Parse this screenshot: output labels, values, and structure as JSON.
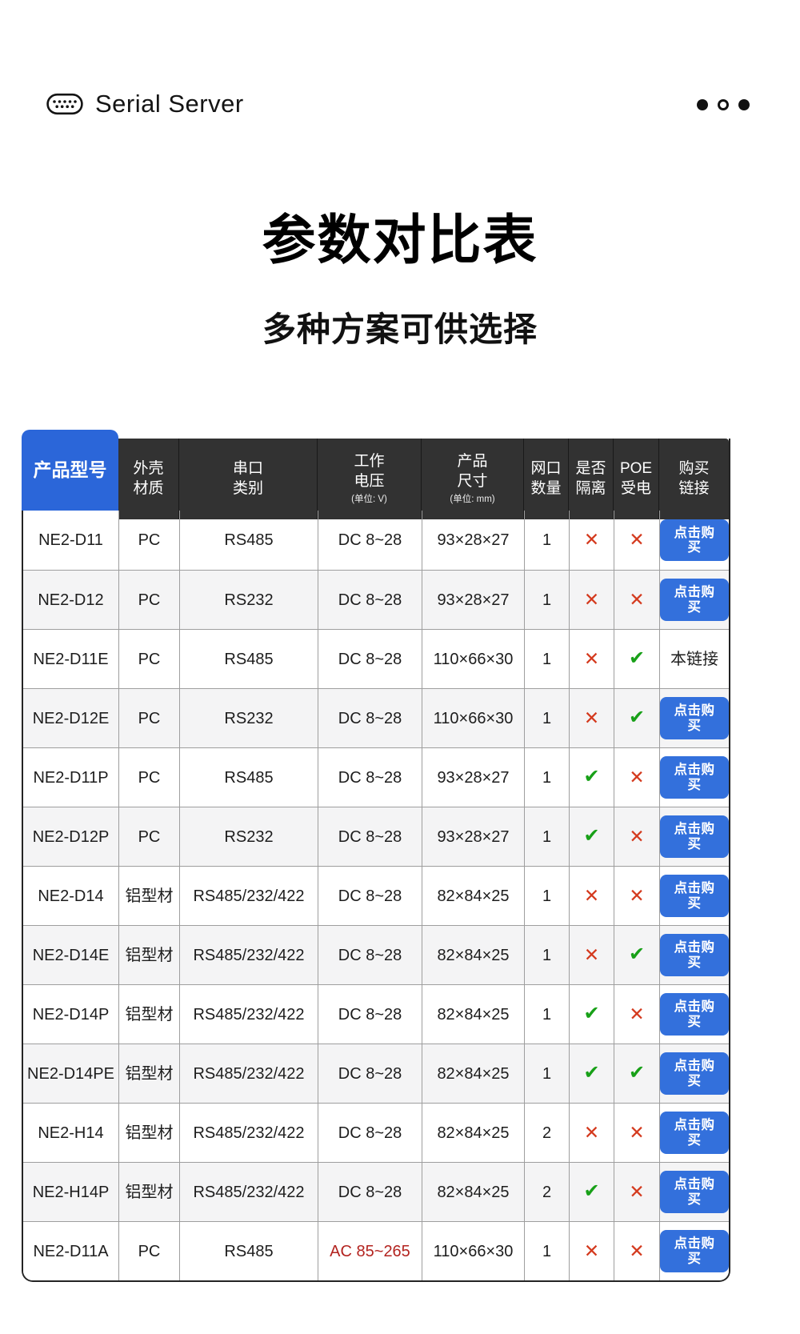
{
  "topbar": {
    "brand": "Serial Server",
    "brand_icon": "db9-serial-connector",
    "pager_dots": [
      "filled",
      "hollow",
      "filled"
    ]
  },
  "hero": {
    "title": "参数对比表",
    "subtitle": "多种方案可供选择"
  },
  "table": {
    "columns": [
      {
        "line1": "产品型号",
        "line2": "",
        "unit": ""
      },
      {
        "line1": "外壳",
        "line2": "材质",
        "unit": ""
      },
      {
        "line1": "串口",
        "line2": "类别",
        "unit": ""
      },
      {
        "line1": "工作",
        "line2": "电压",
        "unit": "(单位: V)"
      },
      {
        "line1": "产品",
        "line2": "尺寸",
        "unit": "(单位: mm)"
      },
      {
        "line1": "网口",
        "line2": "数量",
        "unit": ""
      },
      {
        "line1": "是否",
        "line2": "隔离",
        "unit": ""
      },
      {
        "line1": "POE",
        "line2": "受电",
        "unit": ""
      },
      {
        "line1": "购买",
        "line2": "链接",
        "unit": ""
      }
    ],
    "icons": {
      "check": "✔",
      "cross": "✕"
    },
    "colors": {
      "header_dark": "#323232",
      "model_header_blue": "#2b66d9",
      "buy_button_blue": "#3370dc",
      "check_green": "#18a018",
      "cross_red": "#d43a1e",
      "voltage_highlight_red": "#b3231f",
      "alt_row_gray": "#f4f4f5"
    },
    "rows": [
      {
        "model": "NE2-D11",
        "material": "PC",
        "serial": "RS485",
        "voltage": "DC 8~28",
        "voltage_highlight": false,
        "size": "93×28×27",
        "ports": "1",
        "isolated": false,
        "poe": false,
        "link": {
          "type": "button",
          "label": "点击购买"
        }
      },
      {
        "model": "NE2-D12",
        "material": "PC",
        "serial": "RS232",
        "voltage": "DC 8~28",
        "voltage_highlight": false,
        "size": "93×28×27",
        "ports": "1",
        "isolated": false,
        "poe": false,
        "link": {
          "type": "button",
          "label": "点击购买"
        }
      },
      {
        "model": "NE2-D11E",
        "material": "PC",
        "serial": "RS485",
        "voltage": "DC 8~28",
        "voltage_highlight": false,
        "size": "110×66×30",
        "ports": "1",
        "isolated": false,
        "poe": true,
        "link": {
          "type": "text",
          "label": "本链接"
        }
      },
      {
        "model": "NE2-D12E",
        "material": "PC",
        "serial": "RS232",
        "voltage": "DC 8~28",
        "voltage_highlight": false,
        "size": "110×66×30",
        "ports": "1",
        "isolated": false,
        "poe": true,
        "link": {
          "type": "button",
          "label": "点击购买"
        }
      },
      {
        "model": "NE2-D11P",
        "material": "PC",
        "serial": "RS485",
        "voltage": "DC 8~28",
        "voltage_highlight": false,
        "size": "93×28×27",
        "ports": "1",
        "isolated": true,
        "poe": false,
        "link": {
          "type": "button",
          "label": "点击购买"
        }
      },
      {
        "model": "NE2-D12P",
        "material": "PC",
        "serial": "RS232",
        "voltage": "DC 8~28",
        "voltage_highlight": false,
        "size": "93×28×27",
        "ports": "1",
        "isolated": true,
        "poe": false,
        "link": {
          "type": "button",
          "label": "点击购买"
        }
      },
      {
        "model": "NE2-D14",
        "material": "铝型材",
        "serial": "RS485/232/422",
        "voltage": "DC 8~28",
        "voltage_highlight": false,
        "size": "82×84×25",
        "ports": "1",
        "isolated": false,
        "poe": false,
        "link": {
          "type": "button",
          "label": "点击购买"
        }
      },
      {
        "model": "NE2-D14E",
        "material": "铝型材",
        "serial": "RS485/232/422",
        "voltage": "DC 8~28",
        "voltage_highlight": false,
        "size": "82×84×25",
        "ports": "1",
        "isolated": false,
        "poe": true,
        "link": {
          "type": "button",
          "label": "点击购买"
        }
      },
      {
        "model": "NE2-D14P",
        "material": "铝型材",
        "serial": "RS485/232/422",
        "voltage": "DC 8~28",
        "voltage_highlight": false,
        "size": "82×84×25",
        "ports": "1",
        "isolated": true,
        "poe": false,
        "link": {
          "type": "button",
          "label": "点击购买"
        }
      },
      {
        "model": "NE2-D14PE",
        "material": "铝型材",
        "serial": "RS485/232/422",
        "voltage": "DC 8~28",
        "voltage_highlight": false,
        "size": "82×84×25",
        "ports": "1",
        "isolated": true,
        "poe": true,
        "link": {
          "type": "button",
          "label": "点击购买"
        }
      },
      {
        "model": "NE2-H14",
        "material": "铝型材",
        "serial": "RS485/232/422",
        "voltage": "DC 8~28",
        "voltage_highlight": false,
        "size": "82×84×25",
        "ports": "2",
        "isolated": false,
        "poe": false,
        "link": {
          "type": "button",
          "label": "点击购买"
        }
      },
      {
        "model": "NE2-H14P",
        "material": "铝型材",
        "serial": "RS485/232/422",
        "voltage": "DC 8~28",
        "voltage_highlight": false,
        "size": "82×84×25",
        "ports": "2",
        "isolated": true,
        "poe": false,
        "link": {
          "type": "button",
          "label": "点击购买"
        }
      },
      {
        "model": "NE2-D11A",
        "material": "PC",
        "serial": "RS485",
        "voltage": "AC 85~265",
        "voltage_highlight": true,
        "size": "110×66×30",
        "ports": "1",
        "isolated": false,
        "poe": false,
        "link": {
          "type": "button",
          "label": "点击购买"
        }
      }
    ]
  }
}
